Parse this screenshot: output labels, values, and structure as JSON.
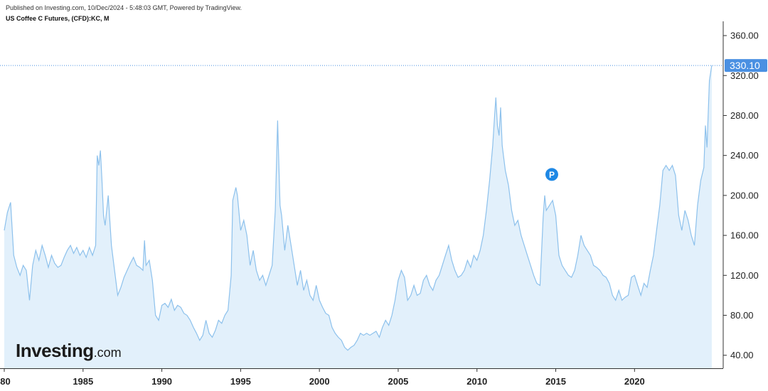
{
  "header": {
    "published": "Published on Investing.com, 10/Dec/2024 - 5:48:03 GMT, Powered by TradingView.",
    "instrument": "US Coffee C Futures, (CFD):KC, M"
  },
  "logo": {
    "main": "Investing",
    "domain": ".com"
  },
  "colors": {
    "line": "#8dc1ec",
    "fill": "#e2f0fb",
    "price_label": "#4a90e2",
    "marker": "#1e88e5"
  },
  "marker": {
    "label": "P",
    "x": 2014.75,
    "y": 221
  },
  "chart_data": {
    "type": "area",
    "title": "US Coffee C Futures, (CFD):KC, M",
    "xlabel": "",
    "ylabel": "",
    "xlim": [
      1980,
      2024.95
    ],
    "ylim": [
      27,
      370
    ],
    "y_ticks": [
      "40.00",
      "80.00",
      "120.00",
      "160.00",
      "200.00",
      "240.00",
      "280.00",
      "320.00",
      "360.00"
    ],
    "x_ticks": [
      "'80",
      "1985",
      "1990",
      "1995",
      "2000",
      "2005",
      "2010",
      "2015",
      "2020"
    ],
    "last_price": "330.10",
    "last_value": 330.1,
    "grid": false,
    "series": [
      {
        "points": [
          [
            1980.0,
            165
          ],
          [
            1980.2,
            183
          ],
          [
            1980.4,
            193
          ],
          [
            1980.6,
            140
          ],
          [
            1980.8,
            128
          ],
          [
            1981.0,
            120
          ],
          [
            1981.2,
            130
          ],
          [
            1981.4,
            125
          ],
          [
            1981.6,
            95
          ],
          [
            1981.8,
            130
          ],
          [
            1982.0,
            145
          ],
          [
            1982.2,
            135
          ],
          [
            1982.4,
            150
          ],
          [
            1982.6,
            140
          ],
          [
            1982.8,
            128
          ],
          [
            1983.0,
            140
          ],
          [
            1983.2,
            132
          ],
          [
            1983.4,
            128
          ],
          [
            1983.6,
            130
          ],
          [
            1983.8,
            138
          ],
          [
            1984.0,
            145
          ],
          [
            1984.2,
            150
          ],
          [
            1984.4,
            142
          ],
          [
            1984.6,
            148
          ],
          [
            1984.8,
            140
          ],
          [
            1985.0,
            145
          ],
          [
            1985.2,
            138
          ],
          [
            1985.4,
            148
          ],
          [
            1985.6,
            140
          ],
          [
            1985.8,
            150
          ],
          [
            1985.9,
            240
          ],
          [
            1986.0,
            230
          ],
          [
            1986.1,
            245
          ],
          [
            1986.2,
            215
          ],
          [
            1986.3,
            180
          ],
          [
            1986.4,
            170
          ],
          [
            1986.5,
            185
          ],
          [
            1986.6,
            200
          ],
          [
            1986.8,
            150
          ],
          [
            1987.0,
            125
          ],
          [
            1987.2,
            100
          ],
          [
            1987.4,
            108
          ],
          [
            1987.6,
            118
          ],
          [
            1987.8,
            125
          ],
          [
            1988.0,
            132
          ],
          [
            1988.2,
            138
          ],
          [
            1988.4,
            130
          ],
          [
            1988.6,
            128
          ],
          [
            1988.8,
            125
          ],
          [
            1988.9,
            155
          ],
          [
            1989.0,
            130
          ],
          [
            1989.2,
            135
          ],
          [
            1989.4,
            115
          ],
          [
            1989.6,
            80
          ],
          [
            1989.8,
            75
          ],
          [
            1990.0,
            90
          ],
          [
            1990.2,
            92
          ],
          [
            1990.4,
            88
          ],
          [
            1990.6,
            96
          ],
          [
            1990.8,
            85
          ],
          [
            1991.0,
            90
          ],
          [
            1991.2,
            88
          ],
          [
            1991.4,
            82
          ],
          [
            1991.6,
            80
          ],
          [
            1991.8,
            75
          ],
          [
            1992.0,
            68
          ],
          [
            1992.2,
            62
          ],
          [
            1992.4,
            55
          ],
          [
            1992.6,
            60
          ],
          [
            1992.8,
            75
          ],
          [
            1993.0,
            62
          ],
          [
            1993.2,
            58
          ],
          [
            1993.4,
            65
          ],
          [
            1993.6,
            75
          ],
          [
            1993.8,
            72
          ],
          [
            1994.0,
            80
          ],
          [
            1994.2,
            85
          ],
          [
            1994.4,
            120
          ],
          [
            1994.5,
            195
          ],
          [
            1994.7,
            208
          ],
          [
            1994.8,
            200
          ],
          [
            1995.0,
            165
          ],
          [
            1995.2,
            175
          ],
          [
            1995.4,
            160
          ],
          [
            1995.6,
            130
          ],
          [
            1995.8,
            145
          ],
          [
            1996.0,
            125
          ],
          [
            1996.2,
            115
          ],
          [
            1996.4,
            120
          ],
          [
            1996.6,
            110
          ],
          [
            1996.8,
            120
          ],
          [
            1997.0,
            130
          ],
          [
            1997.2,
            185
          ],
          [
            1997.35,
            275
          ],
          [
            1997.5,
            190
          ],
          [
            1997.6,
            180
          ],
          [
            1997.8,
            145
          ],
          [
            1998.0,
            170
          ],
          [
            1998.2,
            150
          ],
          [
            1998.4,
            130
          ],
          [
            1998.6,
            110
          ],
          [
            1998.8,
            125
          ],
          [
            1999.0,
            105
          ],
          [
            1999.2,
            115
          ],
          [
            1999.4,
            100
          ],
          [
            1999.6,
            95
          ],
          [
            1999.8,
            110
          ],
          [
            2000.0,
            95
          ],
          [
            2000.2,
            88
          ],
          [
            2000.4,
            82
          ],
          [
            2000.6,
            80
          ],
          [
            2000.8,
            68
          ],
          [
            2001.0,
            62
          ],
          [
            2001.2,
            58
          ],
          [
            2001.4,
            55
          ],
          [
            2001.6,
            48
          ],
          [
            2001.8,
            45
          ],
          [
            2002.0,
            48
          ],
          [
            2002.2,
            50
          ],
          [
            2002.4,
            55
          ],
          [
            2002.6,
            62
          ],
          [
            2002.8,
            60
          ],
          [
            2003.0,
            62
          ],
          [
            2003.2,
            60
          ],
          [
            2003.4,
            62
          ],
          [
            2003.6,
            64
          ],
          [
            2003.8,
            58
          ],
          [
            2004.0,
            68
          ],
          [
            2004.2,
            75
          ],
          [
            2004.4,
            70
          ],
          [
            2004.6,
            80
          ],
          [
            2004.8,
            95
          ],
          [
            2005.0,
            115
          ],
          [
            2005.2,
            125
          ],
          [
            2005.4,
            118
          ],
          [
            2005.6,
            95
          ],
          [
            2005.8,
            100
          ],
          [
            2006.0,
            110
          ],
          [
            2006.2,
            100
          ],
          [
            2006.4,
            102
          ],
          [
            2006.6,
            115
          ],
          [
            2006.8,
            120
          ],
          [
            2007.0,
            110
          ],
          [
            2007.2,
            105
          ],
          [
            2007.4,
            115
          ],
          [
            2007.6,
            120
          ],
          [
            2007.8,
            130
          ],
          [
            2008.0,
            140
          ],
          [
            2008.2,
            150
          ],
          [
            2008.4,
            135
          ],
          [
            2008.6,
            125
          ],
          [
            2008.8,
            118
          ],
          [
            2009.0,
            120
          ],
          [
            2009.2,
            125
          ],
          [
            2009.4,
            135
          ],
          [
            2009.6,
            128
          ],
          [
            2009.8,
            140
          ],
          [
            2010.0,
            135
          ],
          [
            2010.2,
            145
          ],
          [
            2010.4,
            160
          ],
          [
            2010.6,
            185
          ],
          [
            2010.8,
            215
          ],
          [
            2011.0,
            250
          ],
          [
            2011.1,
            275
          ],
          [
            2011.2,
            298
          ],
          [
            2011.3,
            270
          ],
          [
            2011.4,
            260
          ],
          [
            2011.5,
            288
          ],
          [
            2011.6,
            250
          ],
          [
            2011.8,
            225
          ],
          [
            2012.0,
            210
          ],
          [
            2012.2,
            185
          ],
          [
            2012.4,
            170
          ],
          [
            2012.6,
            175
          ],
          [
            2012.8,
            160
          ],
          [
            2013.0,
            150
          ],
          [
            2013.2,
            140
          ],
          [
            2013.4,
            130
          ],
          [
            2013.6,
            120
          ],
          [
            2013.8,
            112
          ],
          [
            2014.0,
            110
          ],
          [
            2014.2,
            178
          ],
          [
            2014.3,
            200
          ],
          [
            2014.4,
            185
          ],
          [
            2014.6,
            190
          ],
          [
            2014.8,
            195
          ],
          [
            2015.0,
            180
          ],
          [
            2015.2,
            140
          ],
          [
            2015.4,
            130
          ],
          [
            2015.6,
            125
          ],
          [
            2015.8,
            120
          ],
          [
            2016.0,
            118
          ],
          [
            2016.2,
            125
          ],
          [
            2016.4,
            140
          ],
          [
            2016.6,
            160
          ],
          [
            2016.8,
            150
          ],
          [
            2017.0,
            145
          ],
          [
            2017.2,
            140
          ],
          [
            2017.4,
            130
          ],
          [
            2017.6,
            128
          ],
          [
            2017.8,
            125
          ],
          [
            2018.0,
            120
          ],
          [
            2018.2,
            118
          ],
          [
            2018.4,
            112
          ],
          [
            2018.6,
            100
          ],
          [
            2018.8,
            95
          ],
          [
            2019.0,
            105
          ],
          [
            2019.2,
            95
          ],
          [
            2019.4,
            98
          ],
          [
            2019.6,
            100
          ],
          [
            2019.8,
            118
          ],
          [
            2020.0,
            120
          ],
          [
            2020.2,
            110
          ],
          [
            2020.4,
            100
          ],
          [
            2020.6,
            112
          ],
          [
            2020.8,
            108
          ],
          [
            2021.0,
            125
          ],
          [
            2021.2,
            140
          ],
          [
            2021.4,
            165
          ],
          [
            2021.6,
            190
          ],
          [
            2021.8,
            225
          ],
          [
            2022.0,
            230
          ],
          [
            2022.2,
            225
          ],
          [
            2022.4,
            230
          ],
          [
            2022.6,
            220
          ],
          [
            2022.8,
            180
          ],
          [
            2023.0,
            165
          ],
          [
            2023.2,
            185
          ],
          [
            2023.4,
            175
          ],
          [
            2023.6,
            160
          ],
          [
            2023.8,
            150
          ],
          [
            2024.0,
            190
          ],
          [
            2024.2,
            215
          ],
          [
            2024.4,
            228
          ],
          [
            2024.5,
            270
          ],
          [
            2024.6,
            248
          ],
          [
            2024.75,
            315
          ],
          [
            2024.9,
            330.1
          ]
        ]
      }
    ]
  }
}
